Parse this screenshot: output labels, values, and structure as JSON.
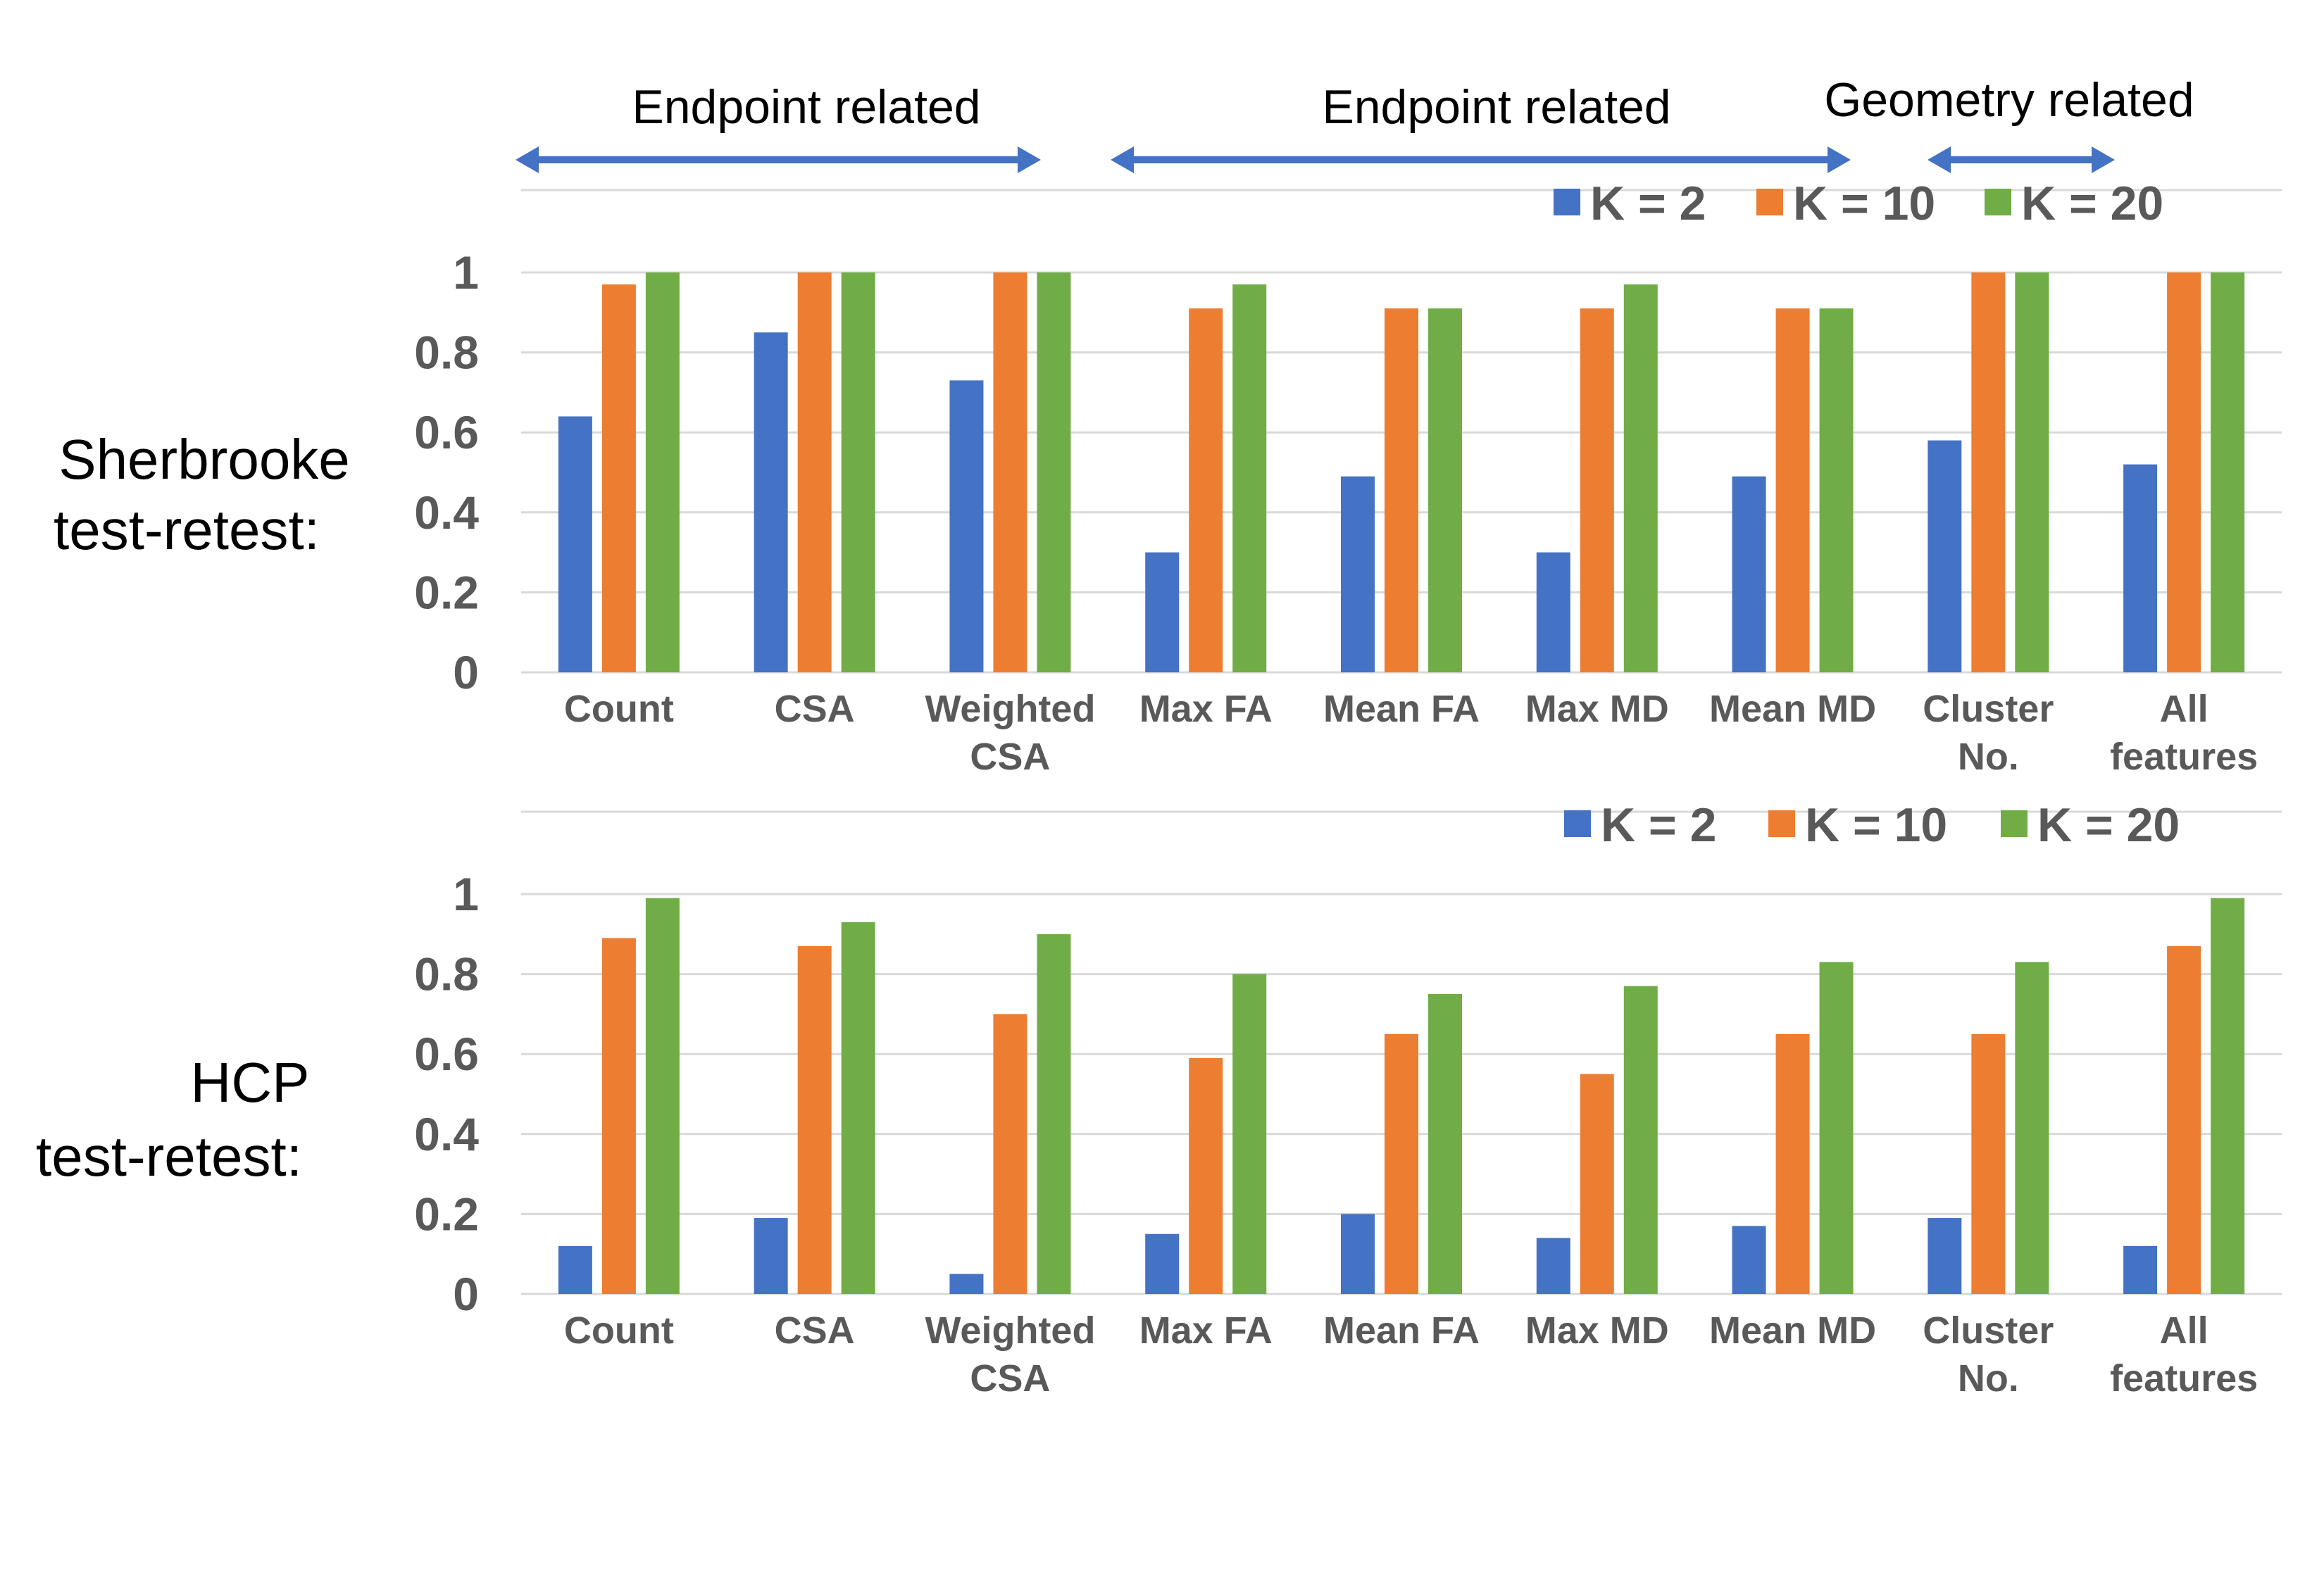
{
  "groups": [
    {
      "label": "Endpoint related",
      "color": "#4472C4"
    },
    {
      "label": "Endpoint related",
      "color": "#4472C4"
    },
    {
      "label": "Geometry related",
      "color": "#4472C4"
    }
  ],
  "chart_data": [
    {
      "type": "bar",
      "row_label": [
        "Sherbrooke",
        "test-retest:"
      ],
      "categories": [
        [
          "Count"
        ],
        [
          "CSA"
        ],
        [
          "Weighted",
          "CSA"
        ],
        [
          "Max FA"
        ],
        [
          "Mean FA"
        ],
        [
          "Max MD"
        ],
        [
          "Mean MD"
        ],
        [
          "Cluster",
          "No."
        ],
        [
          "All",
          "features"
        ]
      ],
      "series": [
        {
          "name": "K = 2",
          "color": "#4472C4",
          "values": [
            0.64,
            0.85,
            0.73,
            0.3,
            0.49,
            0.3,
            0.49,
            0.58,
            0.52
          ]
        },
        {
          "name": "K = 10",
          "color": "#ED7D31",
          "values": [
            0.97,
            1.0,
            1.0,
            0.91,
            0.91,
            0.91,
            0.91,
            1.0,
            1.0
          ]
        },
        {
          "name": "K = 20",
          "color": "#70AD47",
          "values": [
            1.0,
            1.0,
            1.0,
            0.97,
            0.91,
            0.97,
            0.91,
            1.0,
            1.0
          ]
        }
      ],
      "yticks": [
        "0",
        "0.2",
        "0.4",
        "0.6",
        "0.8",
        "1"
      ],
      "ylim": [
        0,
        1
      ],
      "grid": true,
      "legend": "top-right"
    },
    {
      "type": "bar",
      "row_label": [
        "HCP",
        "test-retest:"
      ],
      "categories": [
        [
          "Count"
        ],
        [
          "CSA"
        ],
        [
          "Weighted",
          "CSA"
        ],
        [
          "Max FA"
        ],
        [
          "Mean FA"
        ],
        [
          "Max MD"
        ],
        [
          "Mean MD"
        ],
        [
          "Cluster",
          "No."
        ],
        [
          "All",
          "features"
        ]
      ],
      "series": [
        {
          "name": "K = 2",
          "color": "#4472C4",
          "values": [
            0.12,
            0.19,
            0.05,
            0.15,
            0.2,
            0.14,
            0.17,
            0.19,
            0.12
          ]
        },
        {
          "name": "K = 10",
          "color": "#ED7D31",
          "values": [
            0.89,
            0.87,
            0.7,
            0.59,
            0.65,
            0.55,
            0.65,
            0.65,
            0.87
          ]
        },
        {
          "name": "K = 20",
          "color": "#70AD47",
          "values": [
            0.99,
            0.93,
            0.9,
            0.8,
            0.75,
            0.77,
            0.83,
            0.83,
            0.99
          ]
        }
      ],
      "yticks": [
        "0",
        "0.2",
        "0.4",
        "0.6",
        "0.8",
        "1"
      ],
      "ylim": [
        0,
        1
      ],
      "grid": true,
      "legend": "top-right"
    }
  ]
}
